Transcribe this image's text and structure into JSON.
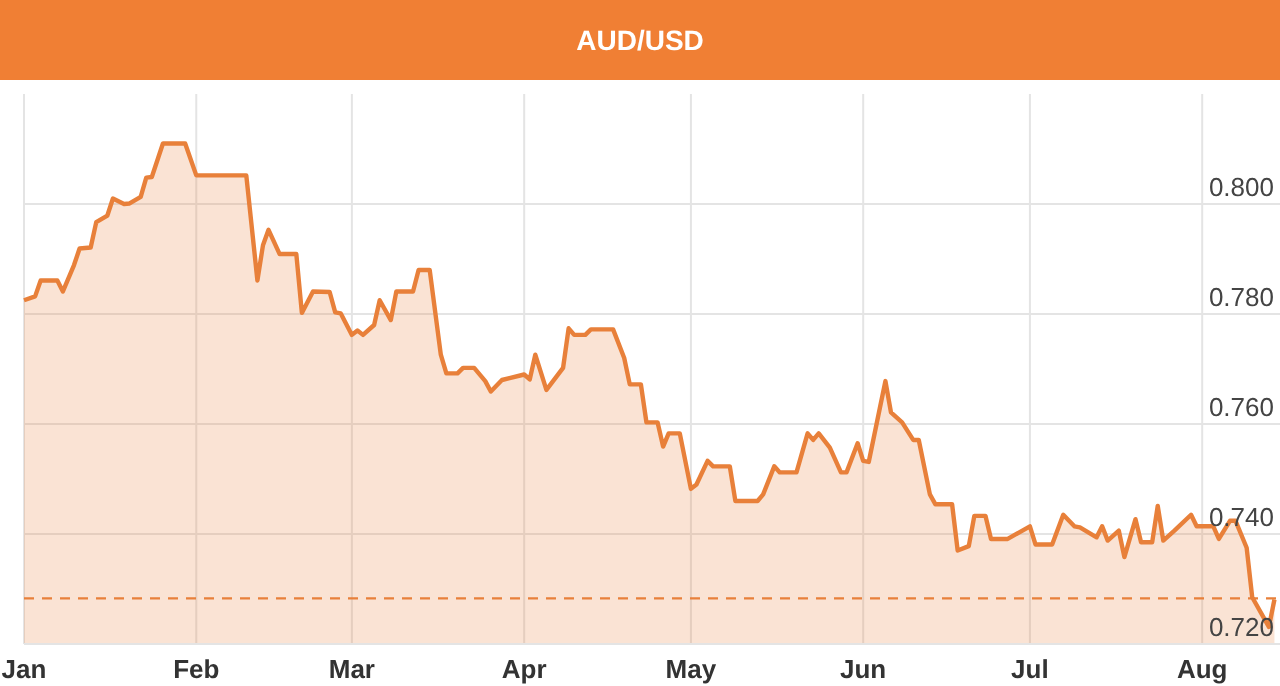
{
  "chart_data": {
    "type": "area",
    "title": "AUD/USD",
    "x": [
      "--01-01",
      "--01-03",
      "--01-04",
      "--01-07",
      "--01-08",
      "--01-10",
      "--01-11",
      "--01-13",
      "--01-14",
      "--01-16",
      "--01-17",
      "--01-19",
      "--01-20",
      "--01-22",
      "--01-23",
      "--01-24",
      "--01-26",
      "--01-30",
      "--02-01",
      "--02-10",
      "--02-12",
      "--02-13",
      "--02-14",
      "--02-16",
      "--02-19",
      "--02-20",
      "--02-22",
      "--02-25",
      "--02-26",
      "--02-27",
      "--03-01",
      "--03-02",
      "--03-03",
      "--03-05",
      "--03-06",
      "--03-08",
      "--03-09",
      "--03-12",
      "--03-13",
      "--03-15",
      "--03-17",
      "--03-18",
      "--03-20",
      "--03-21",
      "--03-23",
      "--03-25",
      "--03-26",
      "--03-28",
      "--04-01",
      "--04-02",
      "--04-03",
      "--04-05",
      "--04-08",
      "--04-09",
      "--04-10",
      "--04-12",
      "--04-13",
      "--04-17",
      "--04-19",
      "--04-20",
      "--04-22",
      "--04-23",
      "--04-25",
      "--04-26",
      "--04-27",
      "--04-29",
      "--05-01",
      "--05-02",
      "--05-04",
      "--05-05",
      "--05-08",
      "--05-09",
      "--05-13",
      "--05-14",
      "--05-16",
      "--05-17",
      "--05-20",
      "--05-22",
      "--05-23",
      "--05-24",
      "--05-26",
      "--05-28",
      "--05-29",
      "--05-31",
      "--06-01",
      "--06-02",
      "--06-04",
      "--06-05",
      "--06-06",
      "--06-08",
      "--06-10",
      "--06-11",
      "--06-13",
      "--06-14",
      "--06-17",
      "--06-18",
      "--06-20",
      "--06-21",
      "--06-23",
      "--06-24",
      "--06-27",
      "--07-01",
      "--07-02",
      "--07-05",
      "--07-07",
      "--07-09",
      "--07-10",
      "--07-13",
      "--07-14",
      "--07-15",
      "--07-17",
      "--07-18",
      "--07-20",
      "--07-21",
      "--07-23",
      "--07-24",
      "--07-25",
      "--07-27",
      "--07-30",
      "--07-31",
      "--08-03",
      "--08-04",
      "--08-06",
      "--08-07",
      "--08-09",
      "--08-10",
      "--08-13",
      "--08-14"
    ],
    "series": [
      {
        "color": "#e8803a",
        "values": [
          0.7825,
          0.7832,
          0.7861,
          0.7861,
          0.7841,
          0.7889,
          0.7919,
          0.7921,
          0.7967,
          0.7979,
          0.801,
          0.8,
          0.8001,
          0.8013,
          0.8048,
          0.8049,
          0.811,
          0.811,
          0.8052,
          0.8052,
          0.7861,
          0.7925,
          0.7953,
          0.7909,
          0.7909,
          0.7802,
          0.7841,
          0.784,
          0.7803,
          0.7801,
          0.7762,
          0.777,
          0.7762,
          0.778,
          0.7825,
          0.7789,
          0.7841,
          0.7841,
          0.788,
          0.788,
          0.7726,
          0.7692,
          0.7692,
          0.7702,
          0.7702,
          0.7678,
          0.7659,
          0.768,
          0.769,
          0.7681,
          0.7726,
          0.7662,
          0.7702,
          0.7774,
          0.7762,
          0.7762,
          0.7772,
          0.7772,
          0.772,
          0.7672,
          0.7672,
          0.7603,
          0.7603,
          0.7559,
          0.7583,
          0.7583,
          0.7482,
          0.749,
          0.7533,
          0.7523,
          0.7523,
          0.746,
          0.746,
          0.7472,
          0.7523,
          0.7512,
          0.7512,
          0.7583,
          0.7571,
          0.7583,
          0.7557,
          0.7512,
          0.7512,
          0.7565,
          0.7533,
          0.7531,
          0.7629,
          0.7678,
          0.7621,
          0.7603,
          0.7571,
          0.7571,
          0.7472,
          0.7454,
          0.7454,
          0.737,
          0.7378,
          0.7433,
          0.7433,
          0.7391,
          0.7391,
          0.7414,
          0.7381,
          0.7381,
          0.7435,
          0.7414,
          0.7412,
          0.7394,
          0.7414,
          0.7388,
          0.7406,
          0.7358,
          0.7427,
          0.7385,
          0.7385,
          0.7451,
          0.7388,
          0.7406,
          0.7435,
          0.7414,
          0.7414,
          0.7391,
          0.7424,
          0.7424,
          0.7375,
          0.7285,
          0.7231,
          0.7281
        ]
      }
    ],
    "xlim": [
      "--01-01",
      "--08-15"
    ],
    "xticks": [
      {
        "value": "--01-01",
        "label": "Jan"
      },
      {
        "value": "--02-01",
        "label": "Feb"
      },
      {
        "value": "--03-01",
        "label": "Mar"
      },
      {
        "value": "--04-01",
        "label": "Apr"
      },
      {
        "value": "--05-01",
        "label": "May"
      },
      {
        "value": "--06-01",
        "label": "Jun"
      },
      {
        "value": "--07-01",
        "label": "Jul"
      },
      {
        "value": "--08-01",
        "label": "Aug"
      }
    ],
    "ylim": [
      0.72,
      0.82
    ],
    "yticks": [
      {
        "value": 0.72,
        "label": "0.720"
      },
      {
        "value": 0.74,
        "label": "0.740"
      },
      {
        "value": 0.76,
        "label": "0.760"
      },
      {
        "value": 0.78,
        "label": "0.780"
      },
      {
        "value": 0.8,
        "label": "0.800"
      }
    ],
    "ref_lines": [
      {
        "axis": "y",
        "value": 0.7283,
        "label": null,
        "color": "#e8803a",
        "line_style": "dashed"
      }
    ],
    "grid": true
  }
}
